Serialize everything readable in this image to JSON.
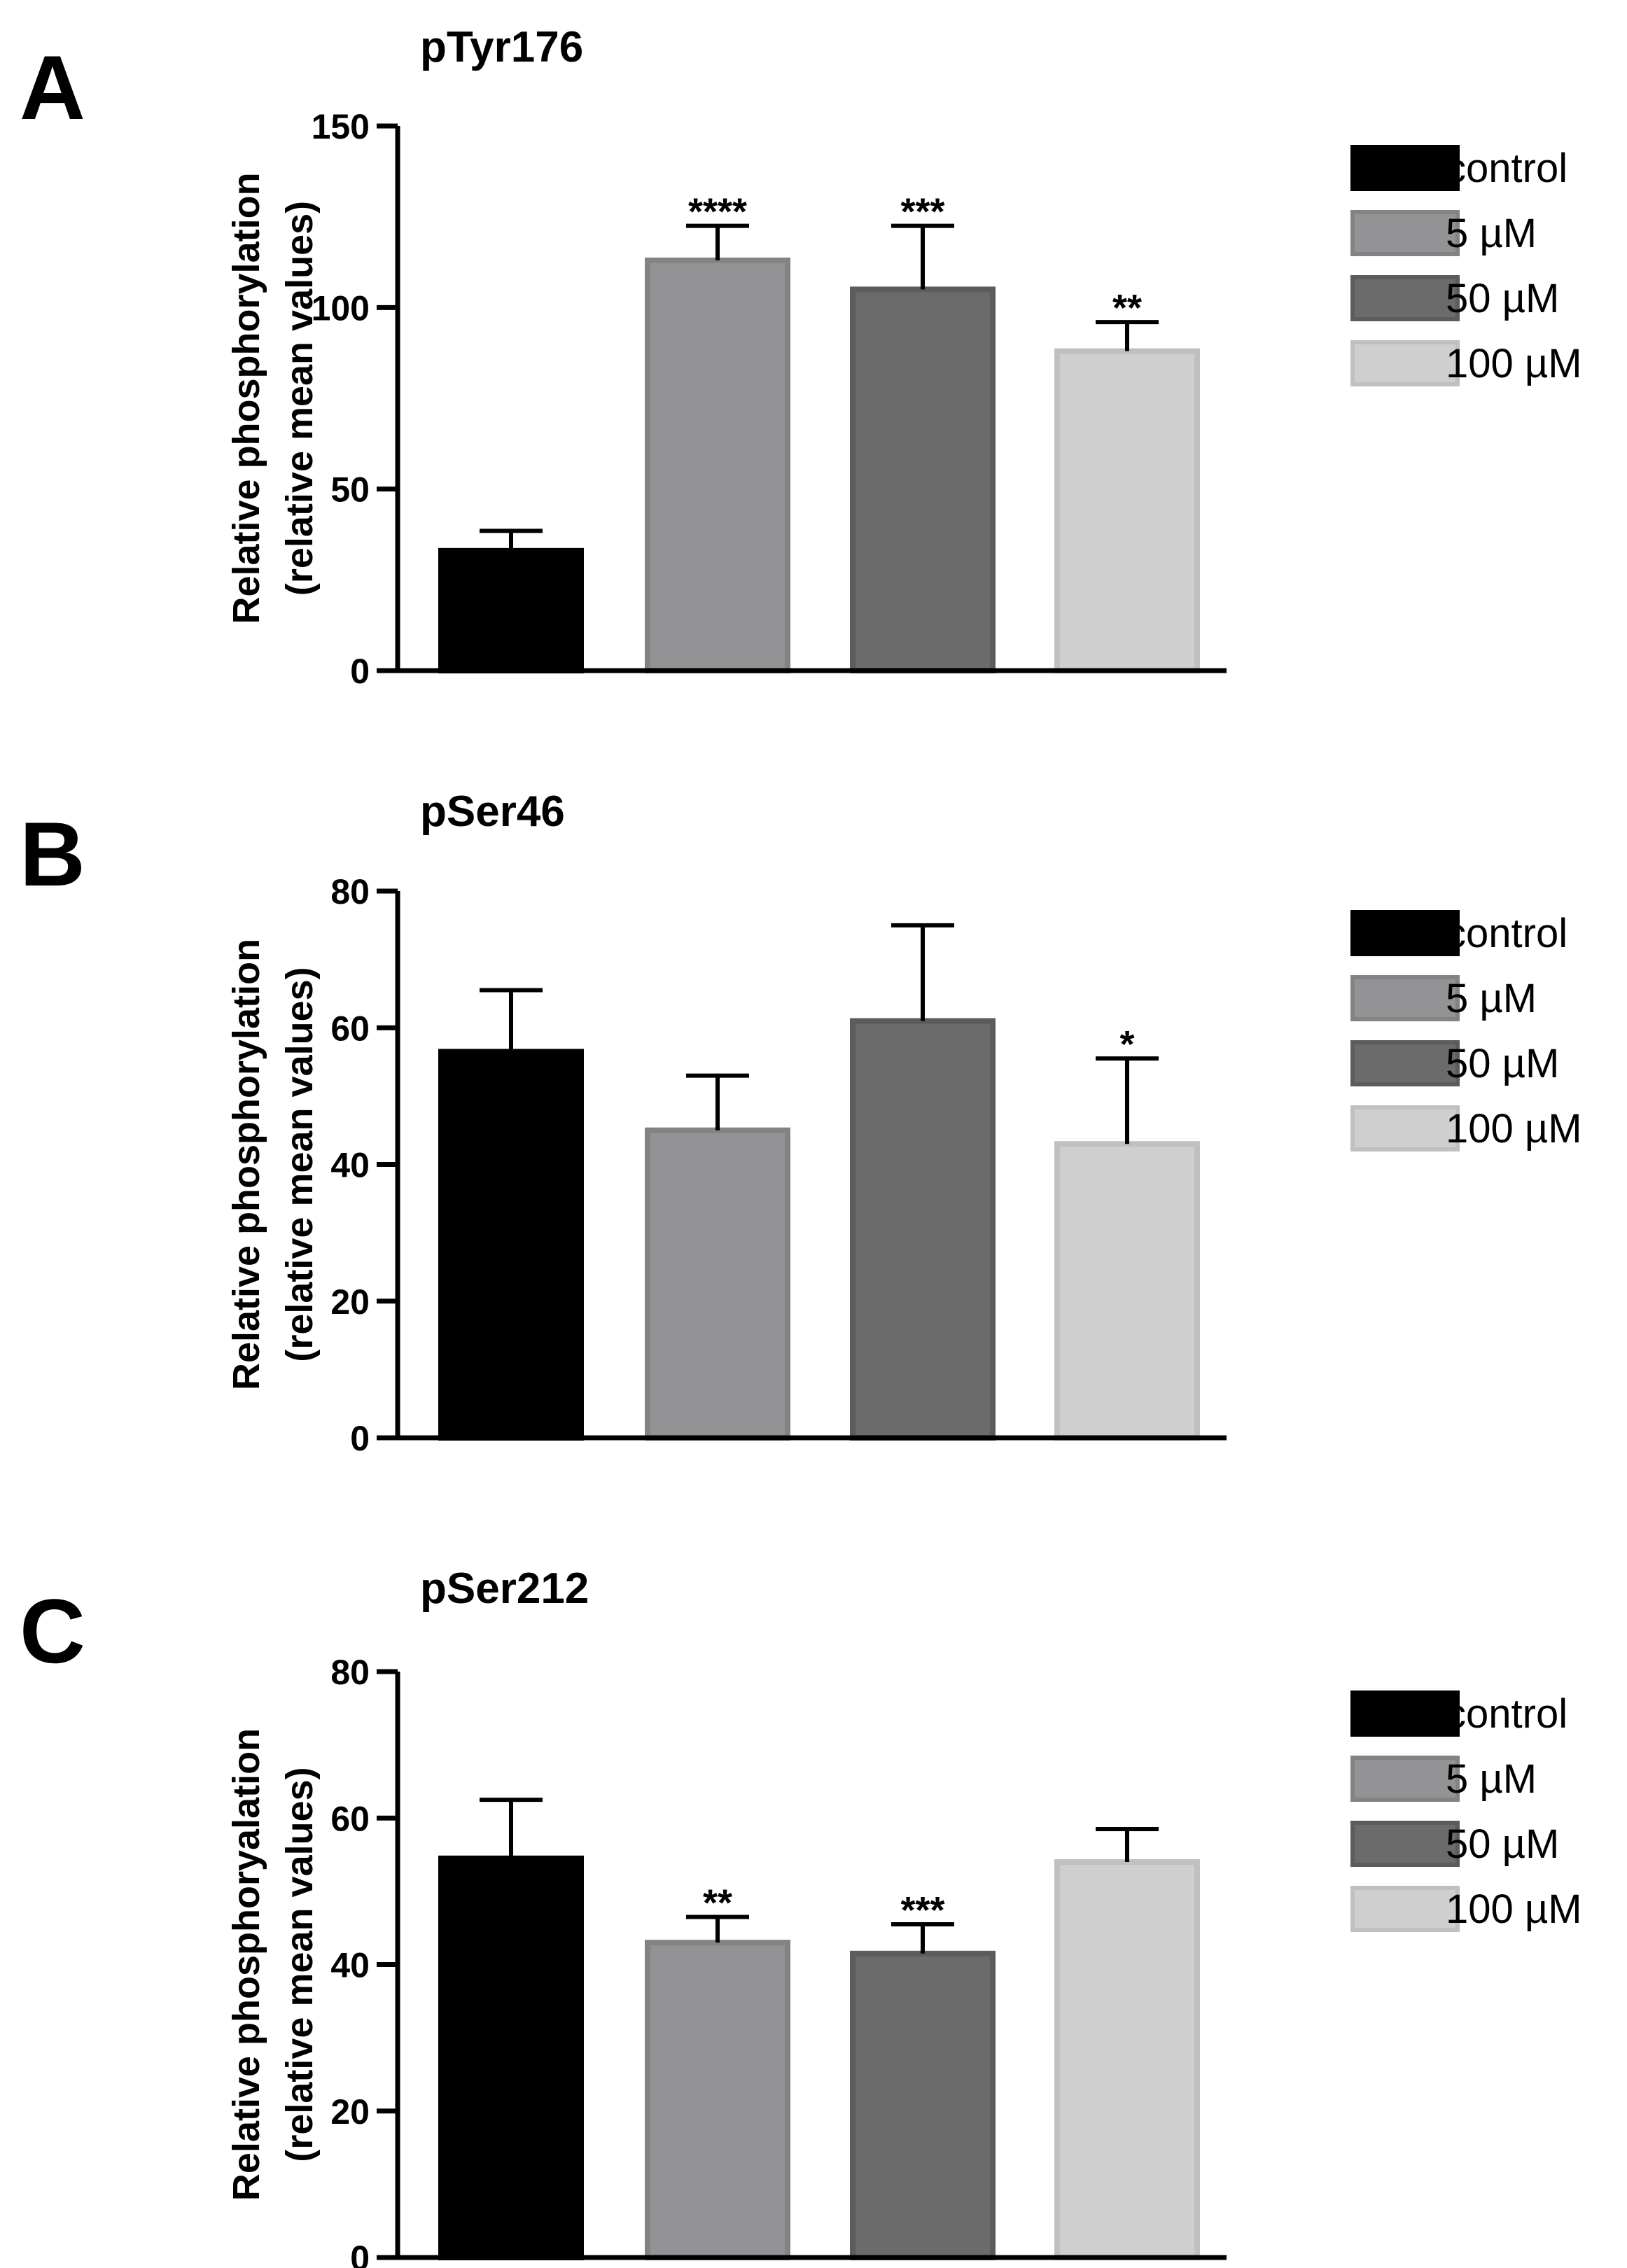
{
  "chart_data": [
    {
      "panel": "A",
      "type": "bar",
      "title": "pTyr176",
      "ylabel_line1": "Relative phosphorylation",
      "ylabel_line2": "(relative mean values)",
      "ylim": [
        0,
        150
      ],
      "yticks": [
        0,
        50,
        100,
        150
      ],
      "categories": [
        "control",
        "5 µM",
        "50 µM",
        "100 µM"
      ],
      "values": [
        33,
        113,
        105,
        88
      ],
      "errors": [
        5.5,
        9.5,
        17.5,
        8
      ],
      "significance": [
        "",
        "****",
        "***",
        "**"
      ],
      "legend": [
        "control",
        "5 µM",
        "50 µM",
        "100 µM"
      ]
    },
    {
      "panel": "B",
      "type": "bar",
      "title": "pSer46",
      "ylabel_line1": "Relative phosphorylation",
      "ylabel_line2": "(relative mean values)",
      "ylim": [
        0,
        80
      ],
      "yticks": [
        0,
        20,
        40,
        60,
        80
      ],
      "categories": [
        "control",
        "5 µM",
        "50 µM",
        "100 µM"
      ],
      "values": [
        56.5,
        45,
        61,
        43
      ],
      "errors": [
        9,
        8,
        14,
        12.5
      ],
      "significance": [
        "",
        "",
        "",
        "*"
      ],
      "legend": [
        "control",
        "5 µM",
        "50 µM",
        "100 µM"
      ]
    },
    {
      "panel": "C",
      "type": "bar",
      "title": "pSer212",
      "ylabel_line1": "Relative phosphoryalation",
      "ylabel_line2": "(relative mean values)",
      "ylim": [
        0,
        80
      ],
      "yticks": [
        0,
        20,
        40,
        60,
        80
      ],
      "categories": [
        "control",
        "5 µM",
        "50 µM",
        "100 µM"
      ],
      "values": [
        54.5,
        43,
        41.5,
        54
      ],
      "errors": [
        8,
        3.5,
        4,
        4.5
      ],
      "significance": [
        "",
        "**",
        "***",
        ""
      ],
      "legend": [
        "control",
        "5 µM",
        "50 µM",
        "100 µM"
      ]
    }
  ],
  "colors": {
    "bar_fills": [
      "#000000",
      "#939396",
      "#6b6b6b",
      "#cfcfcf"
    ],
    "bar_strokes": [
      "#000000",
      "#838386",
      "#5c5c5c",
      "#c0c0c0"
    ],
    "axis": "#000000"
  }
}
